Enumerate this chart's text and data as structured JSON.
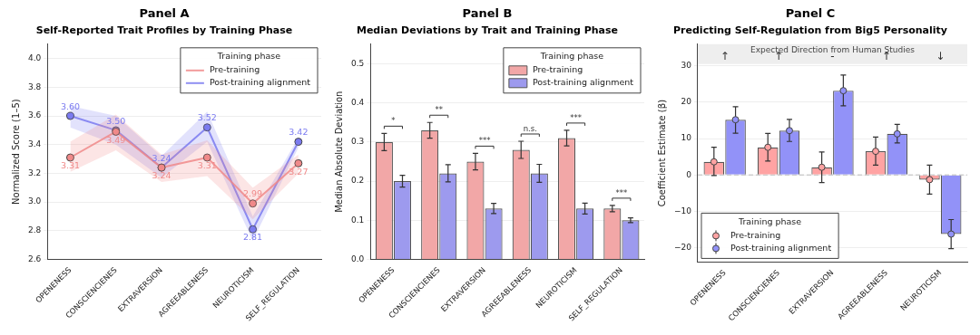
{
  "chart_data": [
    {
      "type": "line",
      "title": "Panel A",
      "subtitle": "Self-Reported Trait Profiles by Training Phase",
      "ylabel": "Normalized Score (1–5)",
      "legend_title": "Training phase",
      "legend": "top right",
      "grid": "y",
      "marker": "circle",
      "line_style": "solid",
      "categories": [
        "OPENENESS",
        "CONSCIENCIENES",
        "EXTRAVERSION",
        "AGREEABLENESS",
        "NEUROTICISM",
        "SELF_REGULATION"
      ],
      "ylim": [
        2.6,
        4.1
      ],
      "yticks": [
        {
          "value": 2.6,
          "label": "2.6"
        },
        {
          "value": 2.8,
          "label": "2.8"
        },
        {
          "value": 3,
          "label": "3.0"
        },
        {
          "value": 3.2,
          "label": "3.2"
        },
        {
          "value": 3.4,
          "label": "3.4"
        },
        {
          "value": 3.6,
          "label": "3.6"
        },
        {
          "value": 3.8,
          "label": "3.8"
        },
        {
          "value": 4,
          "label": "4.0"
        }
      ],
      "series": [
        {
          "name": "Pre-training",
          "color": "#f08a8a",
          "values": [
            3.31,
            3.49,
            3.24,
            3.31,
            2.99,
            3.27
          ],
          "value_labels": [
            "3.31",
            "3.49",
            "3.24",
            "3.31",
            "2.99",
            "3.27"
          ],
          "lower": [
            3.21,
            3.36,
            3.14,
            3.18,
            2.88,
            3.2
          ],
          "upper": [
            3.42,
            3.61,
            3.33,
            3.43,
            3.1,
            3.33
          ]
        },
        {
          "name": "Post-training alignment",
          "color": "#7b7bf0",
          "values": [
            3.6,
            3.5,
            3.24,
            3.52,
            2.81,
            3.42
          ],
          "value_labels": [
            "3.60",
            "3.50",
            "3.24",
            "3.52",
            "2.81",
            "3.42"
          ],
          "lower": [
            3.52,
            3.4,
            3.17,
            3.42,
            2.73,
            3.38
          ],
          "upper": [
            3.67,
            3.6,
            3.32,
            3.63,
            2.9,
            3.45
          ]
        }
      ]
    },
    {
      "type": "bar",
      "title": "Panel B",
      "subtitle": "Median Deviations by Trait and Training Phase",
      "ylabel": "Median Absolute Deviation",
      "legend_title": "Training phase",
      "legend": "top right",
      "grid": "y",
      "categories": [
        "OPENENESS",
        "CONSCIENCIENES",
        "EXTRAVERSION",
        "AGREEABLENESS",
        "NEUROTICISM",
        "SELF_REGULATION"
      ],
      "ylim": [
        0,
        0.55
      ],
      "yticks": [
        {
          "value": 0,
          "label": "0.0"
        },
        {
          "value": 0.1,
          "label": "0.1"
        },
        {
          "value": 0.2,
          "label": "0.2"
        },
        {
          "value": 0.3,
          "label": "0.3"
        },
        {
          "value": 0.4,
          "label": "0.4"
        },
        {
          "value": 0.5,
          "label": "0.5"
        }
      ],
      "annotations": [
        "*",
        "**",
        "***",
        "n.s.",
        "***",
        "***"
      ],
      "series": [
        {
          "name": "Pre-training",
          "color": "#f2a7a7",
          "values": [
            0.3,
            0.33,
            0.25,
            0.28,
            0.31,
            0.13
          ],
          "errors": [
            0.022,
            0.02,
            0.021,
            0.022,
            0.02,
            0.008
          ]
        },
        {
          "name": "Post-training alignment",
          "color": "#9d9aee",
          "values": [
            0.2,
            0.22,
            0.13,
            0.22,
            0.13,
            0.1
          ],
          "errors": [
            0.015,
            0.022,
            0.013,
            0.023,
            0.014,
            0.006
          ]
        }
      ]
    },
    {
      "type": "bar",
      "title": "Panel C",
      "subtitle": "Predicting Self-Regulation from Big5 Personality",
      "ylabel": "Coefficient Estimate (β)",
      "legend_title": "Training phase",
      "legend": "bottom left",
      "grid": "y",
      "marker": "circle",
      "categories": [
        "OPENENESS",
        "CONSCIENCIENES",
        "EXTRAVERSION",
        "AGREEABLENESS",
        "NEUROTICISM"
      ],
      "ylim": [
        -24,
        36
      ],
      "yticks": [
        {
          "value": -20,
          "label": "−20"
        },
        {
          "value": -10,
          "label": "−10"
        },
        0,
        10,
        20,
        30
      ],
      "ref_lines": [
        {
          "axis": "y",
          "value": 0,
          "color": "#bbbbbb",
          "line_style": "dashed"
        }
      ],
      "bands": [
        {
          "axis": "y",
          "from": 30.5,
          "to": 36,
          "label": "Expected Direction from Human Studies",
          "color": "#eeeeee"
        }
      ],
      "annotations": [
        "↑",
        "↑",
        "-",
        "↑",
        "↓"
      ],
      "series": [
        {
          "color": "#ffa3a3",
          "values": [
            3.6,
            7.6,
            2.1,
            6.5,
            -1.3
          ]
        },
        {
          "color": "#9292f8",
          "values": [
            15.2,
            12.2,
            23.2,
            11.3,
            -16.3
          ]
        },
        {
          "type": "scatter",
          "name": "Pre-training",
          "color": "#ffa3a3",
          "x": [
            "OPENENESS",
            "CONSCIENCIENES",
            "EXTRAVERSION",
            "AGREEABLENESS",
            "NEUROTICISM"
          ],
          "values": [
            3.6,
            7.6,
            2.1,
            6.5,
            -1.3
          ],
          "errors": [
            [
              -0.2,
              7.6
            ],
            [
              3.8,
              11.4
            ],
            [
              -2.1,
              6.3
            ],
            [
              2.7,
              10.4
            ],
            [
              -5.3,
              2.7
            ]
          ]
        },
        {
          "type": "scatter",
          "name": "Post-training alignment",
          "color": "#9292f8",
          "x": [
            "OPENENESS",
            "CONSCIENCIENES",
            "EXTRAVERSION",
            "AGREEABLENESS",
            "NEUROTICISM"
          ],
          "values": [
            15.2,
            12.2,
            23.2,
            11.3,
            -16.3
          ],
          "errors": [
            [
              11.5,
              18.8
            ],
            [
              9.2,
              15.3
            ],
            [
              19,
              27.5
            ],
            [
              8.8,
              13.9
            ],
            [
              -20.3,
              -12.3
            ]
          ]
        }
      ]
    }
  ]
}
